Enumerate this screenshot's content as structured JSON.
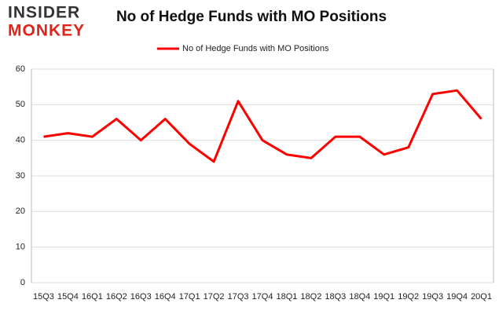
{
  "logo": {
    "line1": "INSIDER",
    "line2": "MONKEY"
  },
  "chart_data": {
    "type": "line",
    "title": "No of Hedge Funds with MO Positions",
    "categories": [
      "15Q3",
      "15Q4",
      "16Q1",
      "16Q2",
      "16Q3",
      "16Q4",
      "17Q1",
      "17Q2",
      "17Q3",
      "17Q4",
      "18Q1",
      "18Q2",
      "18Q3",
      "18Q4",
      "19Q1",
      "19Q2",
      "19Q3",
      "19Q4",
      "20Q1"
    ],
    "series": [
      {
        "name": "No of Hedge Funds with MO Positions",
        "color": "#ff0000",
        "values": [
          41,
          42,
          41,
          46,
          40,
          46,
          39,
          34,
          51,
          40,
          36,
          35,
          41,
          41,
          36,
          38,
          53,
          54,
          46
        ]
      }
    ],
    "ylim": [
      0,
      60
    ],
    "yticks": [
      0,
      10,
      20,
      30,
      40,
      50,
      60
    ],
    "grid": true,
    "legend": "top"
  }
}
